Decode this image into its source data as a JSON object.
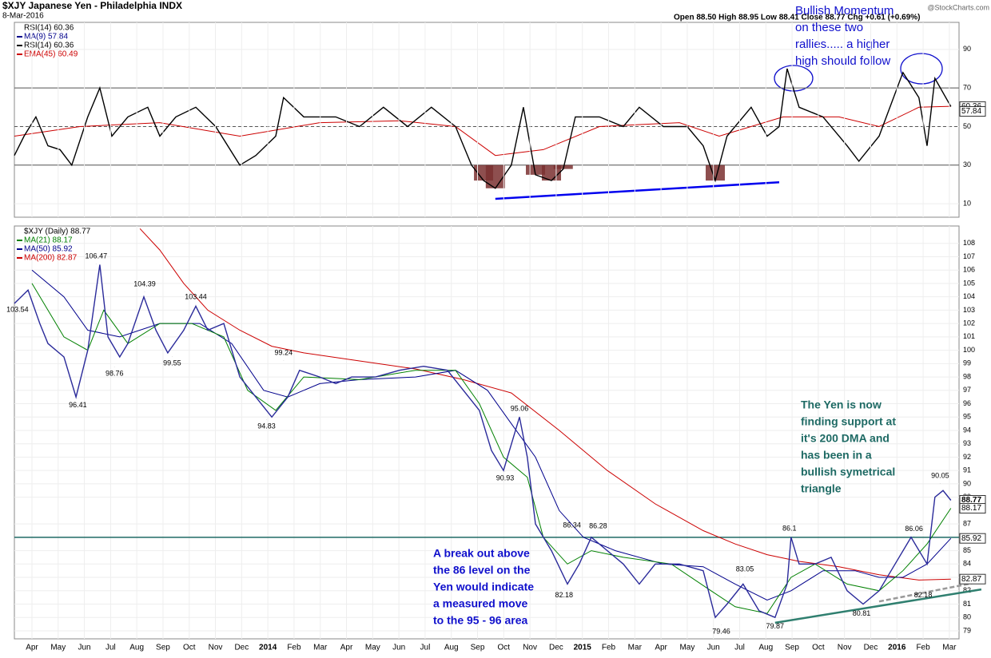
{
  "header": {
    "title": "$XJY Japanese Yen - Philadelphia INDX",
    "date": "8-Mar-2016",
    "ohlc": "Open 88.50  High 88.95  Low 88.41  Close 88.77  Chg +0.61 (+0.69%)",
    "credit": "@StockCharts.com"
  },
  "chart_data": [
    {
      "type": "line",
      "title": "RSI(14) 60.36",
      "legend": [
        {
          "text": "MA(9) 57.84",
          "color": "#00008b"
        },
        {
          "text": "RSI(14) 60.36",
          "color": "#000000"
        },
        {
          "text": "EMA(45) 60.49",
          "color": "#cc0000"
        }
      ],
      "xlim": [
        0.33,
        36.37
      ],
      "ylim": [
        3,
        104
      ],
      "yticks": [
        10,
        30,
        50,
        70,
        90
      ],
      "reference_lines": [
        70,
        50,
        30
      ],
      "series": [
        {
          "name": "RSI(14)",
          "color": "#000000",
          "x": [
            0.33,
            0.7,
            1.15,
            1.61,
            2.07,
            2.52,
            3.13,
            3.59,
            4.05,
            4.66,
            5.42,
            5.88,
            6.49,
            7.25,
            8.01,
            8.93,
            9.54,
            10.3,
            10.6,
            11.37,
            12.59,
            13.5,
            14.41,
            15.33,
            16.24,
            17.16,
            17.77,
            18.23,
            18.68,
            19.29,
            19.75,
            20.21,
            20.82,
            21.27,
            21.73,
            22.65,
            23.56,
            24.17,
            25.09,
            26.0,
            26.61,
            27.07,
            27.52,
            28.44,
            29.05,
            29.51,
            29.81,
            30.27,
            31.18,
            32.1,
            32.55,
            33.32,
            34.23,
            34.84,
            35.15,
            35.45,
            36.06
          ],
          "values": [
            35,
            45,
            55,
            40,
            38,
            30,
            55,
            70,
            45,
            55,
            60,
            45,
            55,
            60,
            50,
            30,
            35,
            45,
            65,
            55,
            55,
            50,
            60,
            50,
            60,
            50,
            30,
            22,
            18,
            30,
            60,
            25,
            22,
            28,
            55,
            55,
            50,
            60,
            50,
            50,
            40,
            22,
            45,
            60,
            45,
            50,
            80,
            60,
            55,
            40,
            32,
            45,
            78,
            65,
            40,
            75,
            60.36
          ]
        },
        {
          "name": "EMA(45)",
          "color": "#cc0000",
          "x": [
            0.33,
            2.83,
            5.88,
            8.93,
            11.98,
            15.02,
            17.16,
            18.68,
            20.51,
            22.65,
            25.7,
            27.22,
            29.66,
            31.79,
            33.32,
            34.84,
            36.06
          ],
          "values": [
            45,
            50,
            52,
            45,
            52,
            53,
            50,
            35,
            38,
            50,
            52,
            45,
            55,
            55,
            50,
            60,
            60.49
          ]
        }
      ],
      "trendlines": [
        {
          "x": [
            18.68,
            29.51
          ],
          "values": [
            12.5,
            21.1
          ],
          "color": "#0000ee"
        }
      ],
      "value_tags": [
        60.36,
        57.84
      ],
      "annotation": [
        "Bullish Momentum",
        "on these two",
        "rallies..... a higher",
        "high should follow"
      ]
    },
    {
      "type": "line",
      "title": "$XJY (Daily) 88.77",
      "legend": [
        {
          "text": "MA(21) 88.17",
          "color": "#008000"
        },
        {
          "text": "MA(50) 85.92",
          "color": "#00008b"
        },
        {
          "text": "MA(200) 82.87",
          "color": "#cc0000"
        }
      ],
      "xlim": [
        0.33,
        36.37
      ],
      "ylim": [
        78.4,
        109.3
      ],
      "yticks": [
        79,
        80,
        81,
        82,
        83,
        84,
        85,
        87,
        89,
        90,
        91,
        92,
        93,
        94,
        95,
        96,
        97,
        98,
        99,
        100,
        101,
        102,
        103,
        104,
        105,
        106,
        107,
        108
      ],
      "xticks": [
        {
          "value": 1,
          "label": "Apr"
        },
        {
          "value": 2,
          "label": "May"
        },
        {
          "value": 3,
          "label": "Jun"
        },
        {
          "value": 4,
          "label": "Jul"
        },
        {
          "value": 5,
          "label": "Aug"
        },
        {
          "value": 6,
          "label": "Sep"
        },
        {
          "value": 7,
          "label": "Oct"
        },
        {
          "value": 8,
          "label": "Nov"
        },
        {
          "value": 9,
          "label": "Dec"
        },
        {
          "value": 10,
          "label": "2014"
        },
        {
          "value": 11,
          "label": "Feb"
        },
        {
          "value": 12,
          "label": "Mar"
        },
        {
          "value": 13,
          "label": "Apr"
        },
        {
          "value": 14,
          "label": "May"
        },
        {
          "value": 15,
          "label": "Jun"
        },
        {
          "value": 16,
          "label": "Jul"
        },
        {
          "value": 17,
          "label": "Aug"
        },
        {
          "value": 18,
          "label": "Sep"
        },
        {
          "value": 19,
          "label": "Oct"
        },
        {
          "value": 20,
          "label": "Nov"
        },
        {
          "value": 21,
          "label": "Dec"
        },
        {
          "value": 22,
          "label": "2015"
        },
        {
          "value": 23,
          "label": "Feb"
        },
        {
          "value": 24,
          "label": "Mar"
        },
        {
          "value": 25,
          "label": "Apr"
        },
        {
          "value": 26,
          "label": "May"
        },
        {
          "value": 27,
          "label": "Jun"
        },
        {
          "value": 28,
          "label": "Jul"
        },
        {
          "value": 29,
          "label": "Aug"
        },
        {
          "value": 30,
          "label": "Sep"
        },
        {
          "value": 31,
          "label": "Oct"
        },
        {
          "value": 32,
          "label": "Nov"
        },
        {
          "value": 33,
          "label": "Dec"
        },
        {
          "value": 34,
          "label": "2016"
        },
        {
          "value": 35,
          "label": "Feb"
        },
        {
          "value": 36,
          "label": "Mar"
        }
      ],
      "reference_lines": [
        86
      ],
      "series": [
        {
          "name": "$XJY",
          "color": "#2a2a9a",
          "x": [
            0.33,
            0.85,
            1.3,
            1.61,
            2.22,
            2.68,
            3.13,
            3.59,
            3.9,
            4.35,
            4.66,
            5.27,
            5.73,
            6.18,
            6.79,
            7.25,
            7.71,
            8.32,
            8.93,
            9.54,
            10.15,
            10.76,
            11.21,
            11.98,
            12.59,
            13.2,
            14.11,
            15.02,
            15.94,
            16.85,
            17.46,
            18.07,
            18.53,
            18.99,
            19.6,
            19.9,
            20.21,
            20.82,
            21.43,
            21.88,
            22.34,
            22.95,
            23.56,
            24.17,
            24.78,
            25.7,
            26.61,
            27.07,
            27.52,
            28.13,
            28.74,
            29.35,
            29.81,
            29.96,
            30.27,
            30.88,
            31.49,
            32.1,
            32.71,
            33.32,
            33.93,
            34.54,
            35.15,
            35.45,
            35.76,
            36.06
          ],
          "values": [
            103.5,
            104.5,
            102,
            100.5,
            99.5,
            96.5,
            100,
            106.4,
            101,
            99.5,
            100.5,
            104,
            101.5,
            99.8,
            101.5,
            103.3,
            101.5,
            102,
            98,
            96.5,
            95,
            96.5,
            98.5,
            98,
            97.5,
            98,
            98,
            98.5,
            98.8,
            98.5,
            97,
            95.5,
            92.5,
            91,
            95,
            92,
            87,
            85,
            82.5,
            84,
            86,
            85,
            84,
            82.5,
            84,
            84,
            83.5,
            80,
            81,
            82.5,
            80.5,
            80,
            82.5,
            86,
            84,
            84,
            84.5,
            82,
            81,
            82,
            84,
            86,
            84,
            89,
            89.5,
            88.77
          ]
        },
        {
          "name": "MA(21)",
          "color": "#008000",
          "x": [
            1.0,
            2.22,
            3.13,
            3.74,
            4.66,
            5.88,
            7.1,
            8.32,
            9.23,
            10.3,
            11.37,
            13.5,
            15.63,
            17.16,
            18.07,
            18.99,
            19.9,
            20.51,
            21.43,
            22.34,
            23.56,
            25.39,
            26.91,
            27.83,
            29.05,
            29.96,
            30.88,
            32.1,
            33.32,
            34.23,
            35.15,
            36.06
          ],
          "values": [
            105,
            101,
            100,
            103,
            100.5,
            102,
            102,
            101,
            97,
            95.5,
            98,
            97.8,
            98.5,
            98.5,
            96,
            92,
            90.5,
            86,
            84,
            85,
            84.5,
            84,
            82,
            80.8,
            80.3,
            83,
            84,
            82.5,
            82,
            83.5,
            85.5,
            88.17
          ]
        },
        {
          "name": "MA(50)",
          "color": "#00008b",
          "x": [
            1.0,
            2.22,
            3.13,
            4.35,
            5.88,
            7.4,
            8.62,
            9.84,
            10.76,
            11.98,
            13.5,
            15.63,
            17.16,
            18.38,
            19.29,
            20.21,
            21.12,
            22.04,
            23.26,
            25.09,
            26.61,
            27.83,
            29.05,
            29.96,
            31.18,
            32.4,
            33.32,
            34.23,
            35.15,
            36.06
          ],
          "values": [
            106,
            104,
            101.5,
            101,
            102,
            102,
            100.5,
            97,
            96.5,
            97.5,
            97.8,
            98,
            98.5,
            97,
            94.5,
            92,
            88,
            86,
            85,
            84,
            83.8,
            82.5,
            81.3,
            82,
            83.5,
            83.5,
            83,
            83,
            84,
            85.92
          ]
        },
        {
          "name": "MA(200)",
          "color": "#cc0000",
          "x": [
            5.12,
            5.88,
            6.79,
            7.71,
            8.93,
            10.15,
            11.37,
            13.5,
            15.63,
            17.46,
            19.29,
            21.12,
            22.95,
            24.78,
            26.61,
            27.83,
            29.05,
            30.27,
            31.79,
            33.32,
            34.84,
            36.06
          ],
          "values": [
            109.1,
            107.5,
            105,
            103,
            101.5,
            100.3,
            99.8,
            99.2,
            98.6,
            97.8,
            96.8,
            94,
            91,
            88.5,
            86.5,
            85.5,
            84.7,
            84.2,
            83.8,
            83.2,
            82.8,
            82.87
          ]
        }
      ],
      "trendlines": [
        {
          "x": [
            29.35,
            37.22
          ],
          "values": [
            79.6,
            82.1
          ],
          "color": "#2f7f6f"
        },
        {
          "x": [
            33.32,
            37.22
          ],
          "values": [
            81.2,
            82.7
          ],
          "color": "#999999"
        }
      ],
      "value_tags": [
        88.77,
        88.17,
        85.92,
        82.87
      ],
      "price_labels": [
        {
          "x": 0.45,
          "value": 103.54,
          "pos": "below"
        },
        {
          "x": 3.45,
          "value": 106.47,
          "pos": "above"
        },
        {
          "x": 2.75,
          "value": 96.41,
          "pos": "below"
        },
        {
          "x": 5.3,
          "value": 104.39,
          "pos": "above"
        },
        {
          "x": 4.15,
          "value": 98.76,
          "pos": "below"
        },
        {
          "x": 7.25,
          "value": 103.44,
          "pos": "above"
        },
        {
          "x": 6.35,
          "value": 99.55,
          "pos": "below"
        },
        {
          "x": 10.6,
          "value": 99.24,
          "pos": "above"
        },
        {
          "x": 9.95,
          "value": 94.83,
          "pos": "below"
        },
        {
          "x": 19.6,
          "value": 95.06,
          "pos": "above"
        },
        {
          "x": 19.05,
          "value": 90.93,
          "pos": "below"
        },
        {
          "x": 21.6,
          "value": 86.34,
          "pos": "above"
        },
        {
          "x": 22.6,
          "value": 86.28,
          "pos": "above"
        },
        {
          "x": 21.3,
          "value": 82.18,
          "pos": "below"
        },
        {
          "x": 28.2,
          "value": 83.05,
          "pos": "above"
        },
        {
          "x": 27.3,
          "value": 79.46,
          "pos": "below"
        },
        {
          "x": 29.35,
          "value": 79.87,
          "pos": "below"
        },
        {
          "x": 29.9,
          "value": 86.1,
          "pos": "above"
        },
        {
          "x": 34.65,
          "value": 86.06,
          "pos": "above"
        },
        {
          "x": 32.65,
          "value": 80.81,
          "pos": "below"
        },
        {
          "x": 35.0,
          "value": 82.18,
          "pos": "below"
        },
        {
          "x": 35.65,
          "value": 90.05,
          "pos": "above"
        }
      ],
      "annotations": [
        {
          "lines": [
            "A break out above",
            "the 86 level on the",
            "Yen would indicate",
            "a measured move",
            "to the  95 - 96 area"
          ],
          "color": "#1010cc"
        },
        {
          "lines": [
            "The Yen is now",
            "finding support at",
            "it's 200 DMA and",
            "has been in a",
            "bullish symetrical",
            "triangle"
          ],
          "color": "#1e6a64"
        }
      ]
    }
  ]
}
